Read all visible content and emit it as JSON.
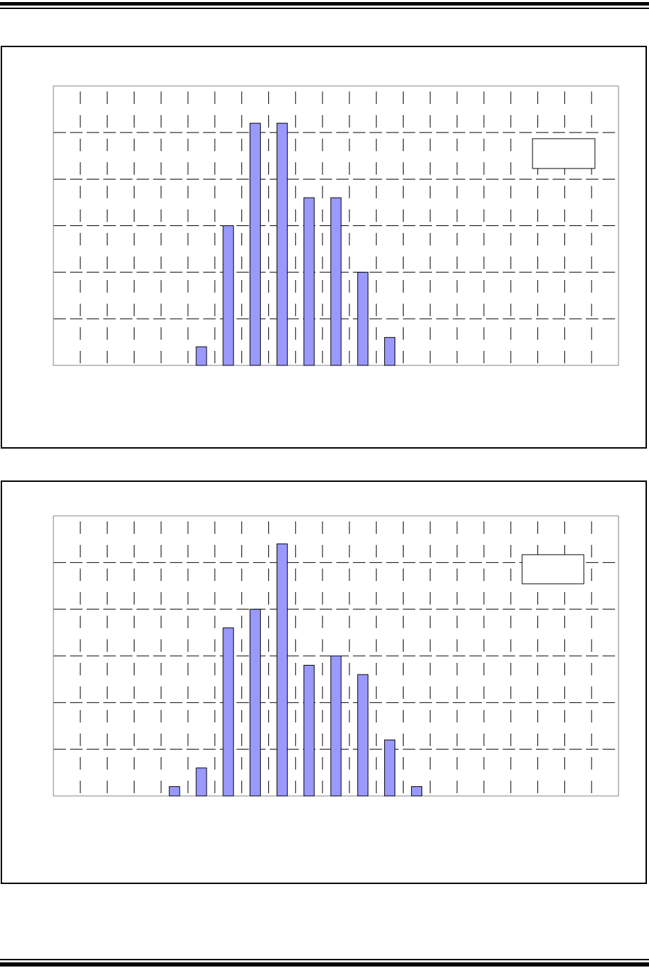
{
  "colors": {
    "bar_fill": "#9999ff",
    "bar_stroke": "#000000",
    "grid": "#000000",
    "axis": "#808080"
  },
  "chart_data": [
    {
      "type": "bar",
      "title": "",
      "xlabel": "",
      "ylabel": "",
      "ylim": [
        0,
        30
      ],
      "grid": true,
      "legend": "top-right",
      "values": [
        0,
        0,
        0,
        0,
        0,
        2,
        15,
        26,
        26,
        18,
        18,
        10,
        3,
        0,
        0,
        0,
        0,
        0,
        0,
        0,
        0
      ]
    },
    {
      "type": "bar",
      "title": "",
      "xlabel": "",
      "ylabel": "",
      "ylim": [
        0,
        30
      ],
      "grid": true,
      "legend": "top-right",
      "values": [
        0,
        0,
        0,
        0,
        1,
        3,
        18,
        20,
        27,
        14,
        15,
        13,
        6,
        1,
        0,
        0,
        0,
        0,
        0,
        0,
        0
      ]
    }
  ]
}
